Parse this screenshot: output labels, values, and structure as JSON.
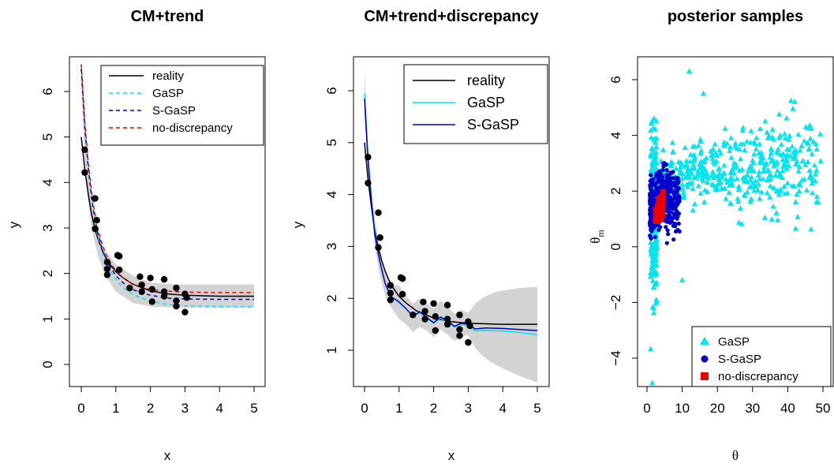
{
  "chart_data": [
    {
      "type": "line",
      "title": "CM+trend",
      "xlabel": "x",
      "ylabel": "y",
      "xlim": [
        0,
        5
      ],
      "ylim": [
        0,
        6.6
      ],
      "xticks": [
        0,
        1,
        2,
        3,
        4,
        5
      ],
      "yticks": [
        0,
        1,
        2,
        3,
        4,
        5,
        6
      ],
      "legend": {
        "position": "top-right",
        "entries": [
          "reality",
          "GaSP",
          "S-GaSP",
          "no-discrepancy"
        ]
      },
      "band": {
        "x": [
          0,
          0.1,
          0.2,
          0.3,
          0.4,
          0.5,
          0.7,
          1.0,
          1.5,
          2.0,
          2.5,
          3.0,
          3.5,
          4.0,
          4.5,
          5.0
        ],
        "lower": [
          6.2,
          4.5,
          3.6,
          3.0,
          2.65,
          2.35,
          1.95,
          1.6,
          1.35,
          1.27,
          1.26,
          1.25,
          1.25,
          1.25,
          1.25,
          1.25
        ],
        "upper": [
          6.8,
          5.2,
          4.2,
          3.6,
          3.2,
          2.9,
          2.5,
          2.2,
          1.95,
          1.8,
          1.77,
          1.76,
          1.76,
          1.76,
          1.76,
          1.76
        ]
      },
      "series": [
        {
          "name": "reality",
          "color": "#000000",
          "dash": "solid",
          "x": [
            0,
            0.1,
            0.2,
            0.3,
            0.4,
            0.5,
            0.6,
            0.7,
            0.8,
            1.0,
            1.2,
            1.5,
            2.0,
            2.5,
            3.0,
            4.0,
            5.0
          ],
          "y": [
            5.0,
            4.3,
            3.75,
            3.3,
            2.97,
            2.72,
            2.52,
            2.36,
            2.23,
            2.04,
            1.91,
            1.76,
            1.62,
            1.55,
            1.52,
            1.5,
            1.5
          ]
        },
        {
          "name": "GaSP",
          "color": "#00e5ee",
          "dash": "dashed",
          "x": [
            0,
            0.1,
            0.2,
            0.3,
            0.4,
            0.5,
            0.6,
            0.7,
            0.8,
            1.0,
            1.2,
            1.5,
            2.0,
            2.5,
            3.0,
            4.0,
            5.0
          ],
          "y": [
            6.5,
            5.2,
            4.3,
            3.6,
            3.1,
            2.75,
            2.48,
            2.27,
            2.1,
            1.86,
            1.7,
            1.53,
            1.39,
            1.32,
            1.29,
            1.27,
            1.27
          ]
        },
        {
          "name": "S-GaSP",
          "color": "#0000cd",
          "dash": "dashed",
          "x": [
            0,
            0.1,
            0.2,
            0.3,
            0.4,
            0.5,
            0.6,
            0.7,
            0.8,
            1.0,
            1.2,
            1.5,
            2.0,
            2.5,
            3.0,
            4.0,
            5.0
          ],
          "y": [
            6.5,
            5.25,
            4.35,
            3.68,
            3.18,
            2.82,
            2.55,
            2.35,
            2.19,
            1.95,
            1.8,
            1.64,
            1.52,
            1.46,
            1.44,
            1.43,
            1.43
          ]
        },
        {
          "name": "no-discrepancy",
          "color": "#ee0000",
          "dash": "dashed",
          "x": [
            0,
            0.1,
            0.2,
            0.3,
            0.4,
            0.5,
            0.6,
            0.7,
            0.8,
            1.0,
            1.2,
            1.5,
            2.0,
            2.5,
            3.0,
            4.0,
            5.0
          ],
          "y": [
            6.6,
            5.35,
            4.45,
            3.78,
            3.28,
            2.92,
            2.65,
            2.45,
            2.29,
            2.06,
            1.91,
            1.76,
            1.65,
            1.61,
            1.59,
            1.58,
            1.58
          ]
        }
      ],
      "points": {
        "x": [
          0.1,
          0.1,
          0.4,
          0.45,
          0.4,
          0.75,
          0.75,
          0.75,
          1.05,
          1.1,
          1.1,
          1.4,
          1.7,
          1.75,
          1.75,
          2.0,
          2.05,
          2.05,
          2.4,
          2.4,
          2.4,
          2.75,
          2.75,
          2.75,
          3.0,
          3.05,
          3.0
        ],
        "y": [
          4.72,
          4.22,
          3.65,
          3.17,
          2.98,
          2.25,
          2.1,
          1.97,
          2.4,
          2.38,
          2.08,
          1.68,
          1.93,
          1.75,
          1.6,
          1.9,
          1.65,
          1.38,
          1.87,
          1.6,
          1.5,
          1.68,
          1.4,
          1.28,
          1.55,
          1.47,
          1.15
        ]
      }
    },
    {
      "type": "line",
      "title": "CM+trend+discrepancy",
      "xlabel": "x",
      "ylabel": "y",
      "xlim": [
        0,
        5
      ],
      "ylim": [
        0.4,
        6.5
      ],
      "xticks": [
        0,
        1,
        2,
        3,
        4,
        5
      ],
      "yticks": [
        1,
        2,
        3,
        4,
        5,
        6
      ],
      "legend": {
        "position": "top-right",
        "entries": [
          "reality",
          "GaSP",
          "S-GaSP"
        ]
      },
      "band": {
        "x": [
          0,
          0.1,
          0.2,
          0.3,
          0.4,
          0.5,
          0.6,
          0.7,
          0.8,
          1.0,
          1.2,
          1.4,
          1.6,
          1.8,
          2.0,
          2.2,
          2.4,
          2.6,
          2.8,
          3.0,
          3.1,
          3.2,
          3.4,
          3.6,
          3.8,
          4.0,
          4.5,
          5.0
        ],
        "lower": [
          5.5,
          4.5,
          3.7,
          3.0,
          2.6,
          2.3,
          2.05,
          1.9,
          1.8,
          1.6,
          1.5,
          1.35,
          1.45,
          1.38,
          1.25,
          1.4,
          1.3,
          1.18,
          1.25,
          1.3,
          1.15,
          1.05,
          0.9,
          0.8,
          0.72,
          0.65,
          0.5,
          0.38
        ],
        "upper": [
          6.4,
          5.0,
          4.15,
          3.5,
          3.15,
          2.8,
          2.5,
          2.35,
          2.25,
          2.25,
          2.05,
          1.9,
          2.0,
          1.9,
          1.8,
          1.95,
          1.85,
          1.7,
          1.78,
          1.72,
          1.8,
          1.9,
          2.0,
          2.07,
          2.12,
          2.15,
          2.2,
          2.22
        ]
      },
      "series": [
        {
          "name": "reality",
          "color": "#000000",
          "dash": "solid",
          "x": [
            0,
            0.1,
            0.2,
            0.3,
            0.4,
            0.5,
            0.6,
            0.7,
            0.8,
            1.0,
            1.2,
            1.5,
            2.0,
            2.5,
            3.0,
            4.0,
            5.0
          ],
          "y": [
            5.0,
            4.3,
            3.75,
            3.3,
            2.97,
            2.72,
            2.52,
            2.36,
            2.23,
            2.04,
            1.91,
            1.76,
            1.62,
            1.55,
            1.52,
            1.5,
            1.5
          ]
        },
        {
          "name": "GaSP",
          "color": "#00e5ee",
          "dash": "solid",
          "x": [
            0,
            0.1,
            0.2,
            0.3,
            0.4,
            0.5,
            0.6,
            0.7,
            0.8,
            1.0,
            1.2,
            1.4,
            1.6,
            1.8,
            2.0,
            2.2,
            2.4,
            2.6,
            2.8,
            3.0,
            3.2,
            3.5,
            4.0,
            4.5,
            5.0
          ],
          "y": [
            5.95,
            4.7,
            3.9,
            3.25,
            2.85,
            2.55,
            2.28,
            2.12,
            2.02,
            1.92,
            1.8,
            1.65,
            1.73,
            1.62,
            1.52,
            1.62,
            1.55,
            1.45,
            1.5,
            1.48,
            1.37,
            1.38,
            1.37,
            1.34,
            1.3
          ]
        },
        {
          "name": "S-GaSP",
          "color": "#0000cd",
          "dash": "solid",
          "x": [
            0,
            0.1,
            0.2,
            0.3,
            0.4,
            0.5,
            0.6,
            0.7,
            0.8,
            1.0,
            1.2,
            1.4,
            1.6,
            1.8,
            2.0,
            2.2,
            2.4,
            2.6,
            2.8,
            3.0,
            3.2,
            3.5,
            4.0,
            4.5,
            5.0
          ],
          "y": [
            5.85,
            4.65,
            3.85,
            3.22,
            2.85,
            2.55,
            2.28,
            2.13,
            2.02,
            1.93,
            1.8,
            1.66,
            1.74,
            1.63,
            1.53,
            1.64,
            1.57,
            1.46,
            1.52,
            1.5,
            1.41,
            1.43,
            1.42,
            1.4,
            1.38
          ]
        }
      ],
      "points": {
        "x": [
          0.1,
          0.1,
          0.4,
          0.45,
          0.4,
          0.75,
          0.75,
          0.75,
          1.05,
          1.1,
          1.1,
          1.4,
          1.7,
          1.75,
          1.75,
          2.0,
          2.05,
          2.05,
          2.4,
          2.4,
          2.4,
          2.75,
          2.75,
          2.75,
          3.0,
          3.05,
          3.0
        ],
        "y": [
          4.72,
          4.22,
          3.65,
          3.17,
          2.98,
          2.25,
          2.1,
          1.97,
          2.4,
          2.38,
          2.08,
          1.68,
          1.93,
          1.75,
          1.6,
          1.9,
          1.65,
          1.38,
          1.87,
          1.6,
          1.5,
          1.68,
          1.4,
          1.28,
          1.55,
          1.47,
          1.15
        ]
      }
    },
    {
      "type": "scatter",
      "title": "posterior samples",
      "xlabel": "θ",
      "ylabel": "θm",
      "xlim": [
        0,
        50
      ],
      "ylim": [
        -5,
        6.5
      ],
      "xticks": [
        0,
        10,
        20,
        30,
        40,
        50
      ],
      "yticks": [
        -4,
        -2,
        0,
        2,
        4,
        6
      ],
      "legend": {
        "position": "bottom-right",
        "entries": [
          "GaSP",
          "S-GaSP",
          "no-discrepancy"
        ]
      },
      "series": [
        {
          "name": "GaSP",
          "color": "#00e5ee",
          "marker": "triangle",
          "x_range": [
            0.5,
            50
          ],
          "y_range": [
            -4.9,
            6.3
          ],
          "note_points": [
            [
              12,
              6.3
            ],
            [
              2,
              4.6
            ],
            [
              16,
              5.5
            ],
            [
              42,
              5.2
            ],
            [
              1.5,
              -4.9
            ],
            [
              10,
              -1.2
            ]
          ]
        },
        {
          "name": "S-GaSP",
          "color": "#0000cd",
          "marker": "circle",
          "x_range": [
            0.5,
            9.5
          ],
          "y_range": [
            -0.8,
            3.0
          ]
        },
        {
          "name": "no-discrepancy",
          "color": "#ee0000",
          "marker": "square",
          "x_range": [
            2,
            5
          ],
          "y_range": [
            0.9,
            2.0
          ]
        }
      ]
    }
  ]
}
